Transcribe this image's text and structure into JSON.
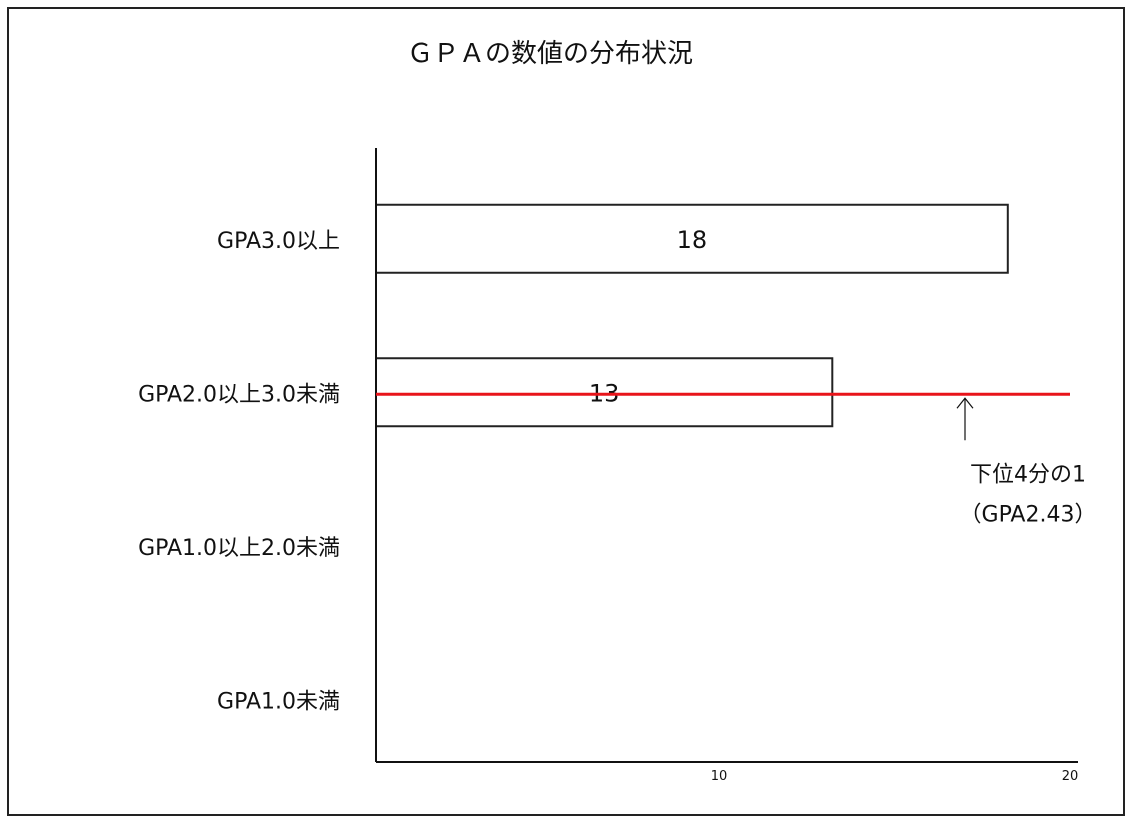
{
  "chart_data": {
    "type": "bar",
    "orientation": "horizontal",
    "title": "ＧＰＡの数値の分布状況",
    "categories": [
      "GPA3.0以上",
      "GPA2.0以上3.0未満",
      "GPA1.0以上2.0未満",
      "GPA1.0未満"
    ],
    "values": [
      18,
      13,
      null,
      null
    ],
    "value_labels": [
      "18",
      "13",
      "",
      ""
    ],
    "xlim": [
      0,
      20
    ],
    "x_ticks": [
      10,
      20
    ],
    "x_tick_labels": [
      "10",
      "20"
    ],
    "xlabel": "",
    "ylabel": "",
    "grid": false,
    "bar_fill": "#ffffff",
    "bar_stroke": "#222222",
    "reference_line": {
      "category": "GPA2.0以上3.0未満",
      "color": "#e8141a",
      "annotation_lines": [
        "下位4分の1",
        "（GPA2.43）"
      ]
    }
  }
}
